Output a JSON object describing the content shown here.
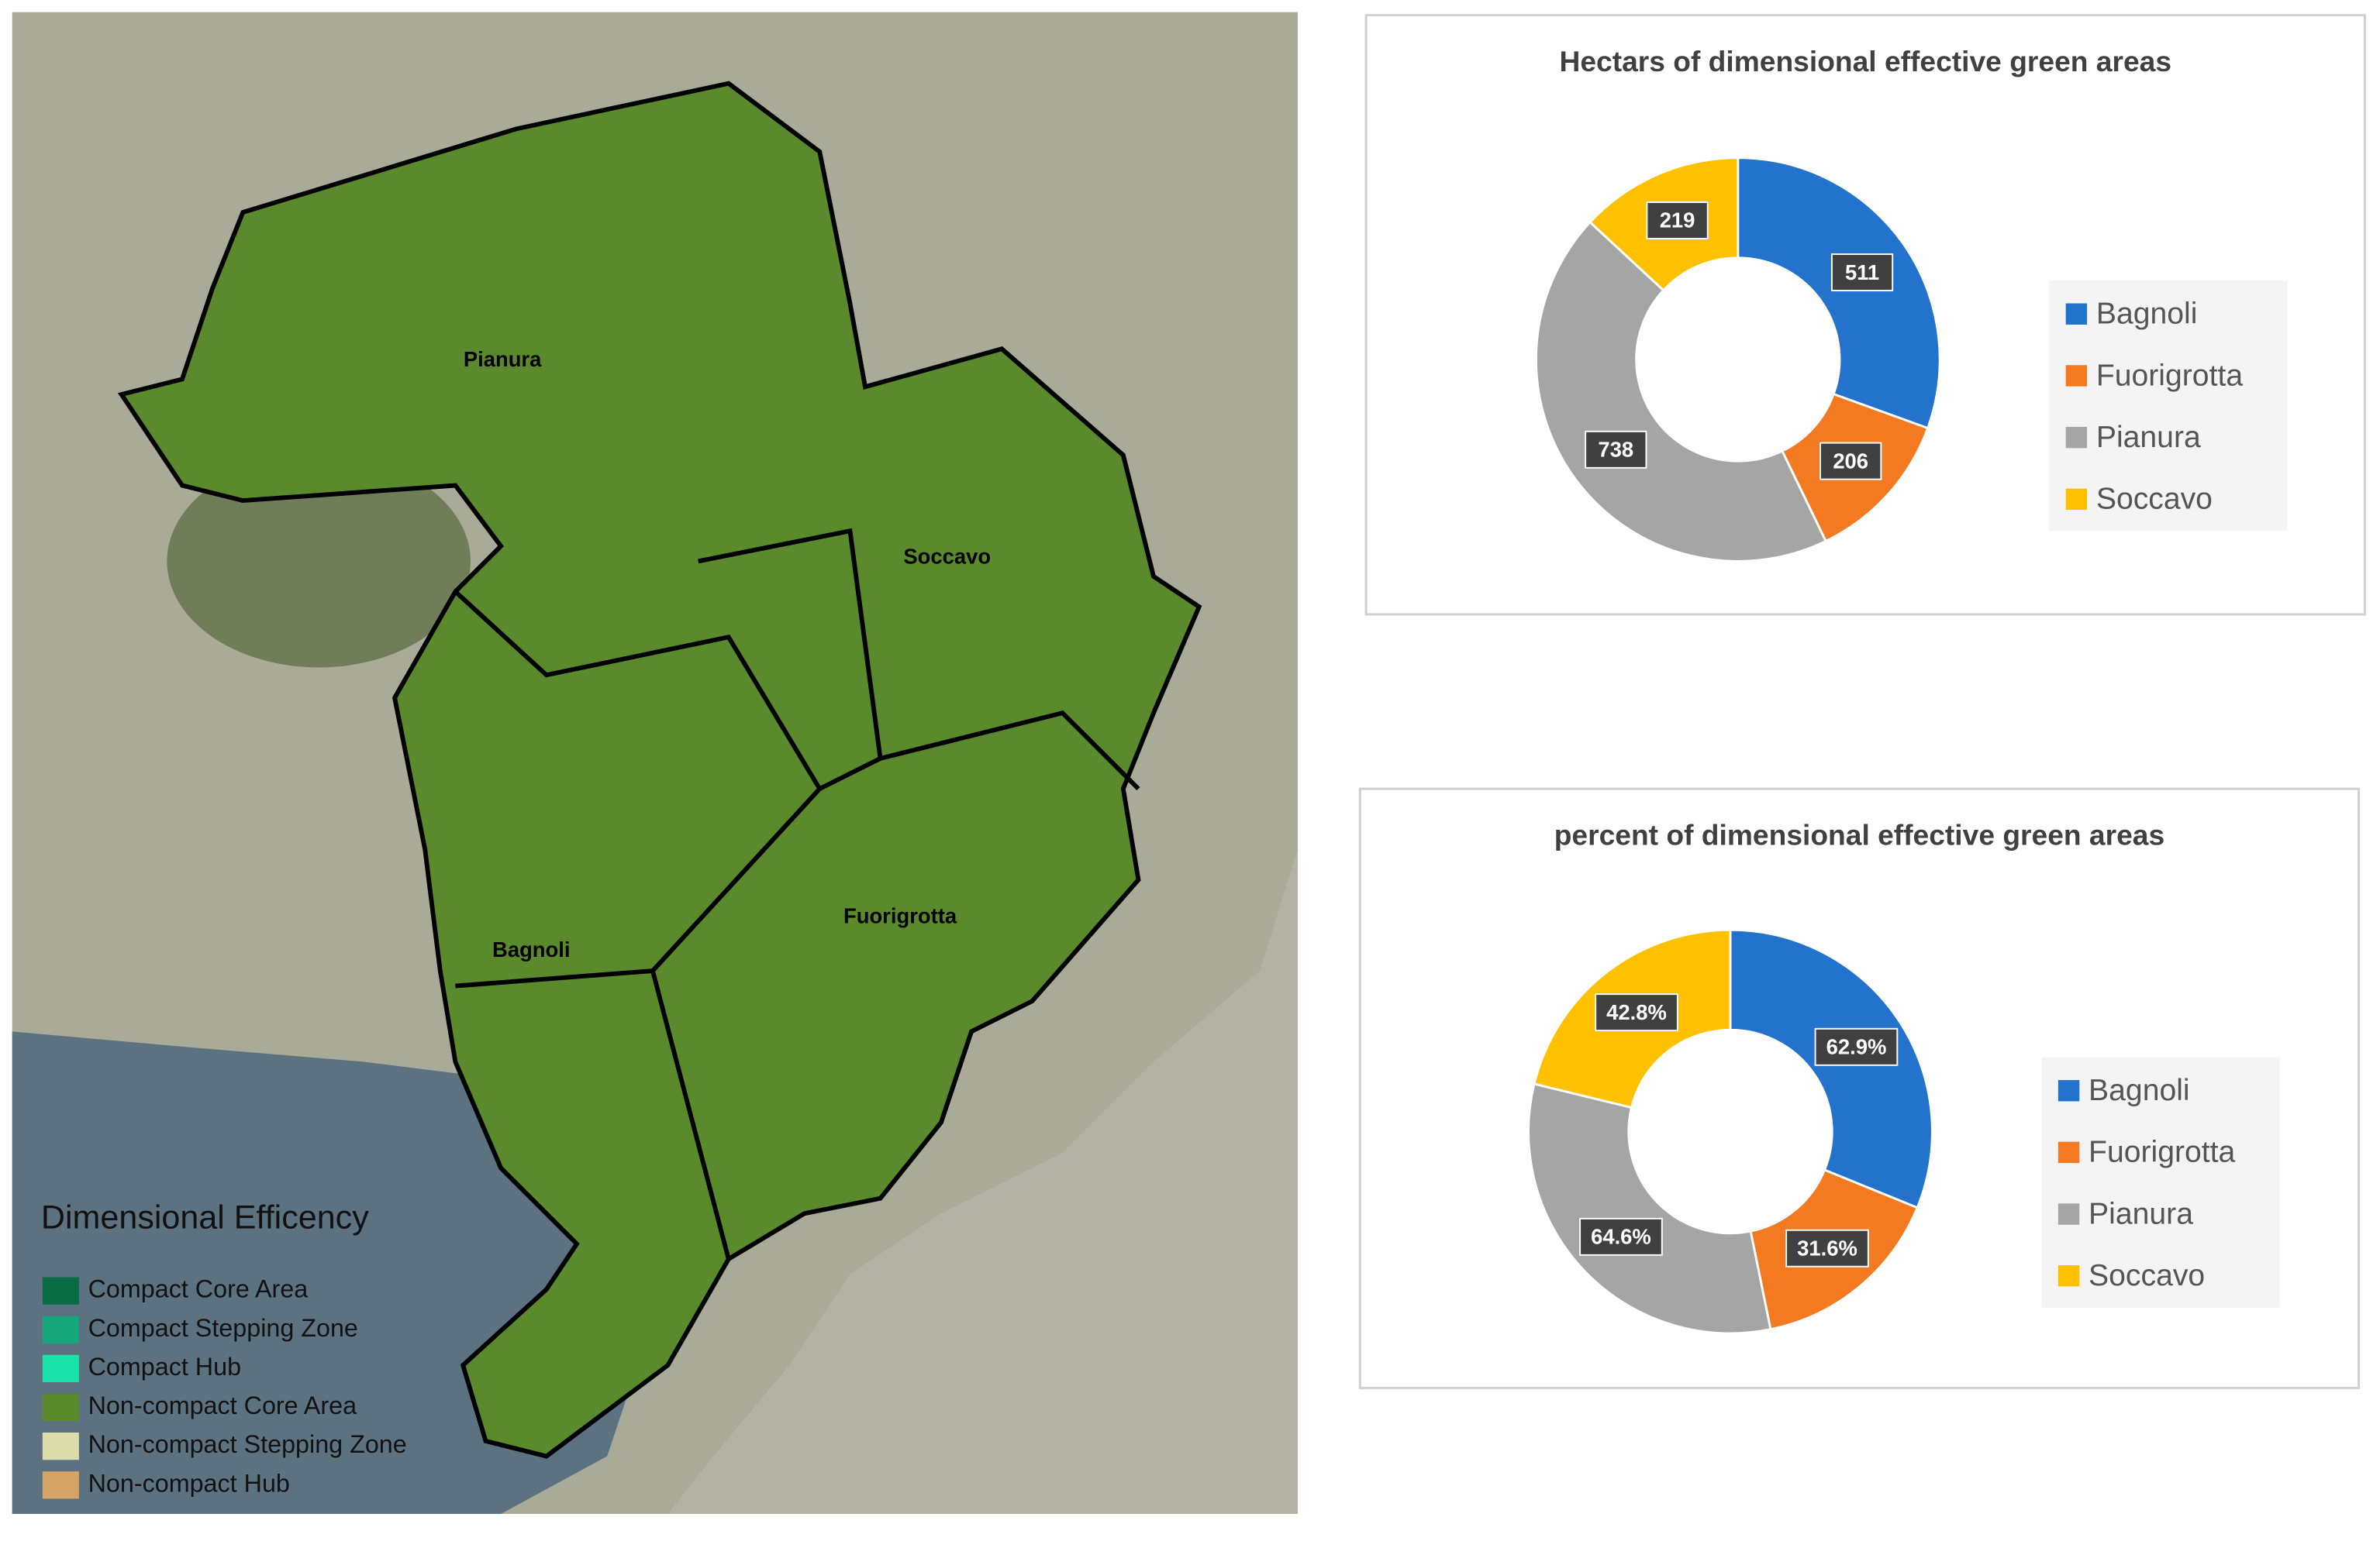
{
  "map": {
    "districts": [
      "Pianura",
      "Soccavo",
      "Bagnoli",
      "Fuorigrotta"
    ],
    "legend_title": "Dimensional Efficency",
    "legend": [
      {
        "label": "Compact Core Area",
        "color": "#0b6b45"
      },
      {
        "label": "Compact Stepping Zone",
        "color": "#16a77a"
      },
      {
        "label": "Compact Hub",
        "color": "#19e3a8"
      },
      {
        "label": "Non-compact Core Area",
        "color": "#5b8a2c"
      },
      {
        "label": "Non-compact Stepping Zone",
        "color": "#dcdcaa"
      },
      {
        "label": "Non-compact Hub",
        "color": "#d6a565"
      }
    ]
  },
  "chart_data": [
    {
      "type": "donut",
      "title": "Hectars of dimensional effective green areas",
      "categories": [
        "Bagnoli",
        "Fuorigrotta",
        "Pianura",
        "Soccavo"
      ],
      "values": [
        511,
        206,
        738,
        219
      ],
      "colors": [
        "#2372cc",
        "#f47a22",
        "#a5a5a5",
        "#ffc000"
      ]
    },
    {
      "type": "donut",
      "title": "percent of dimensional effective green areas",
      "categories": [
        "Bagnoli",
        "Fuorigrotta",
        "Pianura",
        "Soccavo"
      ],
      "values": [
        62.9,
        31.6,
        64.6,
        42.8
      ],
      "value_labels": [
        "62.9%",
        "31.6%",
        "64.6%",
        "42.8%"
      ],
      "colors": [
        "#2372cc",
        "#f47a22",
        "#a5a5a5",
        "#ffc000"
      ]
    }
  ]
}
